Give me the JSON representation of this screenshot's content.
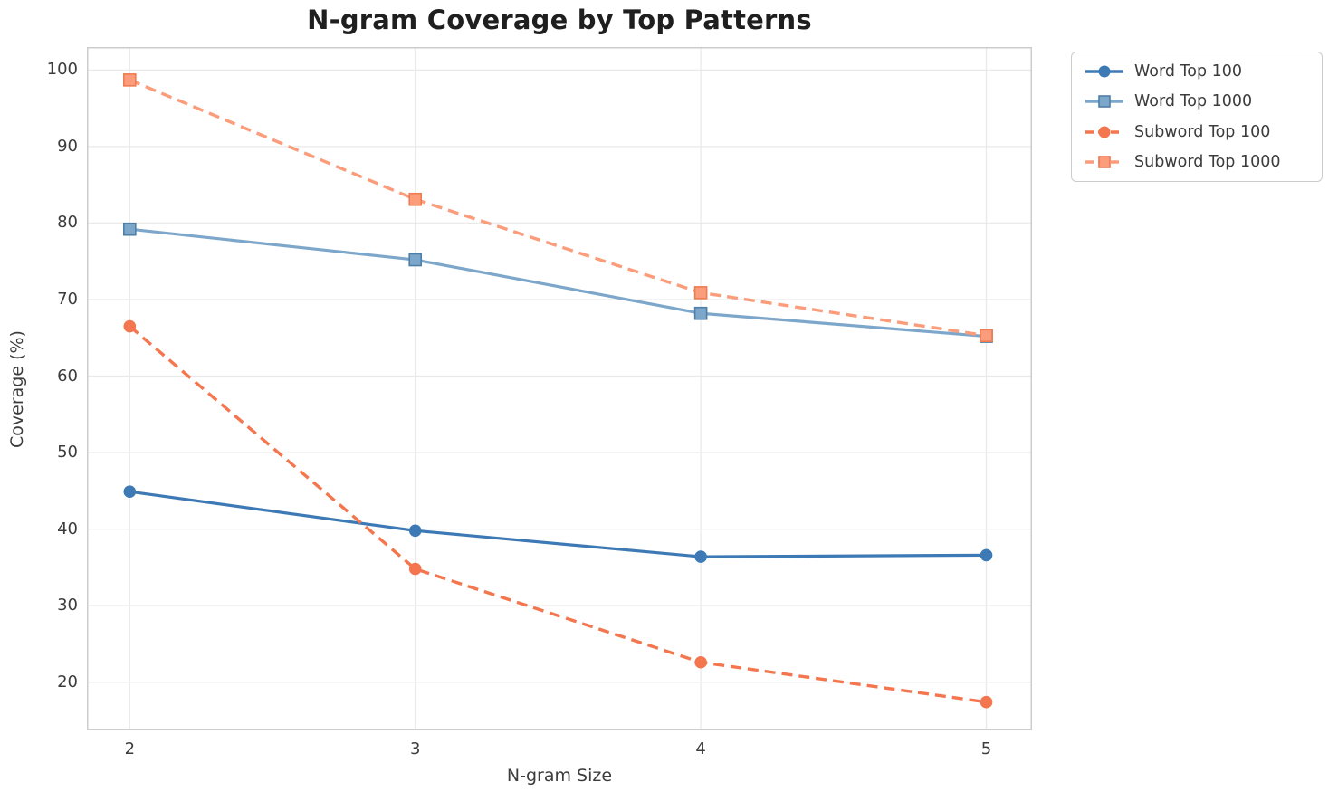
{
  "chart_data": {
    "type": "line",
    "title": "N-gram Coverage by Top Patterns",
    "xlabel": "N-gram Size",
    "ylabel": "Coverage (%)",
    "x": [
      2,
      3,
      4,
      5
    ],
    "xticks": [
      2,
      3,
      4,
      5
    ],
    "yticks": [
      20,
      30,
      40,
      50,
      60,
      70,
      80,
      90,
      100
    ],
    "xlim": [
      1.85,
      5.16
    ],
    "ylim": [
      13.7,
      103.0
    ],
    "grid": true,
    "legend_position": "outside-upper-right",
    "series": [
      {
        "name": "Word Top 100",
        "color": "#3d7ab5",
        "line_style": "solid",
        "marker": "circle",
        "values": [
          44.9,
          39.8,
          36.4,
          36.6
        ]
      },
      {
        "name": "Word Top 1000",
        "color": "#7da7ca",
        "marker_edge": "#4d7fa9",
        "line_style": "solid",
        "marker": "square",
        "values": [
          79.2,
          75.2,
          68.2,
          65.2
        ]
      },
      {
        "name": "Subword Top 100",
        "color": "#f4764e",
        "line_style": "dashed",
        "marker": "circle",
        "values": [
          66.5,
          34.8,
          22.6,
          17.4
        ]
      },
      {
        "name": "Subword Top 1000",
        "color": "#fb9c7a",
        "marker_edge": "#f07b52",
        "line_style": "dashed",
        "marker": "square",
        "values": [
          98.7,
          83.1,
          70.9,
          65.3
        ]
      }
    ],
    "style": {
      "grid_color": "#e9e9e9",
      "spine_color": "#cccccc",
      "background": "#ffffff"
    }
  }
}
